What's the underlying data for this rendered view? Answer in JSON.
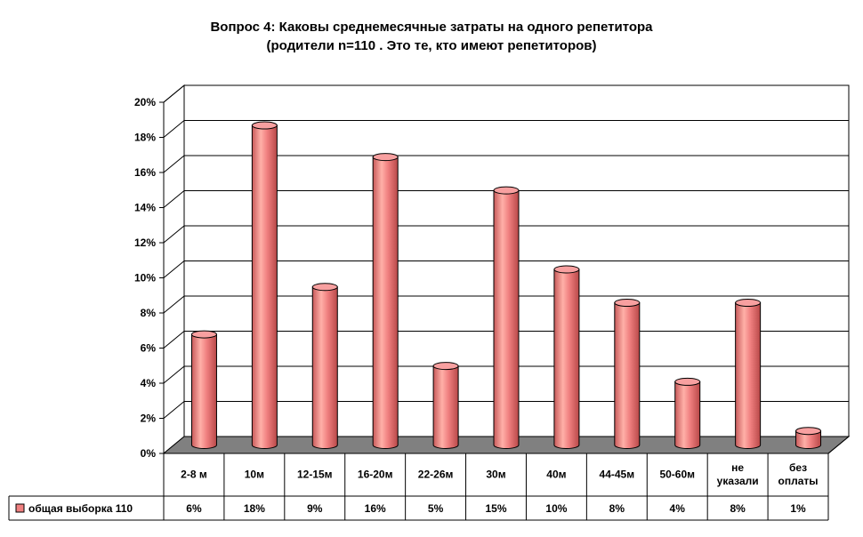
{
  "chart_data": {
    "type": "bar",
    "title": [
      "Вопрос 4: Каковы среднемесячные затраты на одного репетитора",
      "(родители n=110 . Это те, кто имеют репетиторов)"
    ],
    "categories": [
      [
        "2-8 м"
      ],
      [
        "10м"
      ],
      [
        "12-15м"
      ],
      [
        "16-20м"
      ],
      [
        "22-26м"
      ],
      [
        "30м"
      ],
      [
        "40м"
      ],
      [
        "44-45м"
      ],
      [
        "50-60м"
      ],
      [
        "не",
        "указали"
      ],
      [
        "без",
        "оплаты"
      ]
    ],
    "series": [
      {
        "name": "общая выборка 110",
        "values": [
          6.3,
          18.2,
          9.0,
          16.4,
          4.5,
          14.5,
          10.0,
          8.1,
          3.6,
          8.1,
          0.8
        ],
        "value_labels": [
          "6%",
          "18%",
          "9%",
          "16%",
          "5%",
          "15%",
          "10%",
          "8%",
          "4%",
          "8%",
          "1%"
        ],
        "color": "#f08080"
      }
    ],
    "yticks": [
      "0%",
      "2%",
      "4%",
      "6%",
      "8%",
      "10%",
      "12%",
      "14%",
      "16%",
      "18%",
      "20%"
    ],
    "ylim": [
      0,
      20
    ],
    "grid": true,
    "legend": "data-table"
  }
}
